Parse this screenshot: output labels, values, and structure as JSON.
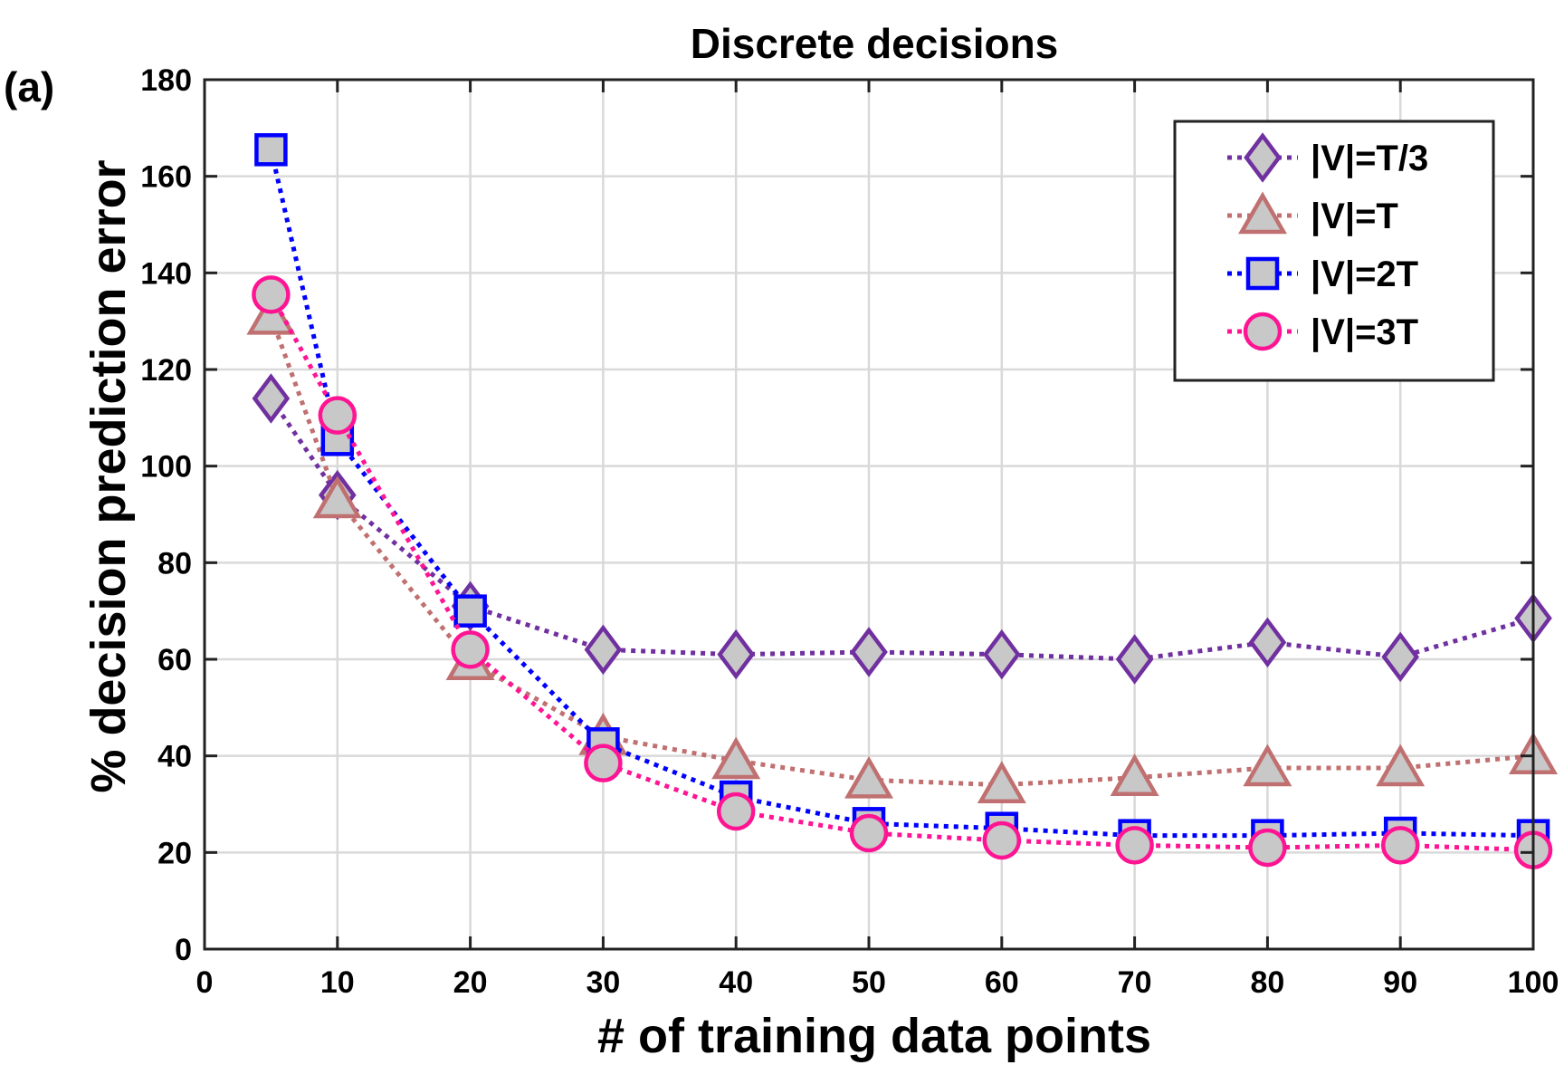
{
  "panel_label": "(a)",
  "chart_data": {
    "type": "line",
    "title": "Discrete decisions",
    "xlabel": "# of training data points",
    "ylabel": "% decision prediction error",
    "xlim": [
      0,
      100
    ],
    "ylim": [
      0,
      180
    ],
    "xticks": [
      0,
      10,
      20,
      30,
      40,
      50,
      60,
      70,
      80,
      90,
      100
    ],
    "yticks": [
      0,
      20,
      40,
      60,
      80,
      100,
      120,
      140,
      160,
      180
    ],
    "grid": true,
    "legend_position": "top-right",
    "x": [
      5,
      10,
      20,
      30,
      40,
      50,
      60,
      70,
      80,
      90,
      100
    ],
    "series": [
      {
        "name": "|V|=T/3",
        "marker": "diamond",
        "line_style": "dotted",
        "color": "#7030A0",
        "marker_fill": "#C8C8C8",
        "values": [
          114,
          94,
          71,
          62,
          61,
          61.5,
          61,
          60,
          63.5,
          60.5,
          68.5
        ]
      },
      {
        "name": "|V|=T",
        "marker": "triangle",
        "line_style": "dotted",
        "color": "#C07070",
        "marker_fill": "#C8C8C8",
        "values": [
          131,
          93,
          59.5,
          44,
          39,
          35,
          34,
          35.5,
          37.5,
          37.5,
          40
        ]
      },
      {
        "name": "|V|=2T",
        "marker": "square",
        "line_style": "dotted",
        "color": "#0000FF",
        "marker_fill": "#C8C8C8",
        "values": [
          165.5,
          105.5,
          70,
          42.5,
          31.5,
          26,
          25,
          23.5,
          23.5,
          24,
          23.5
        ]
      },
      {
        "name": "|V|=3T",
        "marker": "circle",
        "line_style": "dotted",
        "color": "#FF1493",
        "marker_fill": "#C8C8C8",
        "values": [
          135.5,
          110.5,
          62,
          38.5,
          28.5,
          24,
          22.5,
          21.5,
          21,
          21.5,
          20.5
        ]
      }
    ]
  }
}
